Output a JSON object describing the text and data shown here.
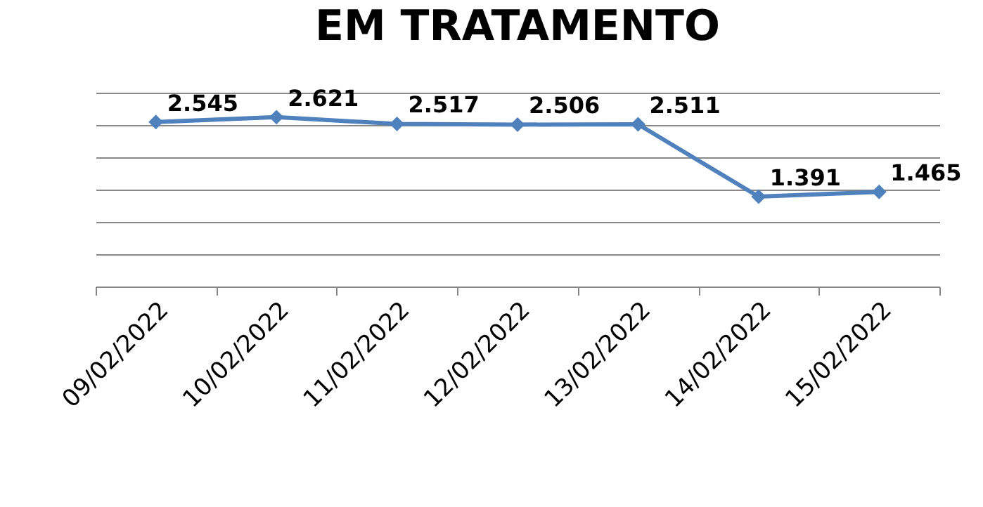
{
  "chart_data": {
    "type": "line",
    "title": "EM TRATAMENTO",
    "categories": [
      "09/02/2022",
      "10/02/2022",
      "11/02/2022",
      "12/02/2022",
      "13/02/2022",
      "14/02/2022",
      "15/02/2022"
    ],
    "series": [
      {
        "color": "#4f81bd",
        "values": [
          2545,
          2621,
          2517,
          2506,
          2511,
          1391,
          1465
        ],
        "value_labels": [
          "2.545",
          "2.621",
          "2.517",
          "2.506",
          "2.511",
          "1.391",
          "1.465"
        ]
      }
    ],
    "ylim": [
      0,
      3000
    ],
    "yticks": [
      0,
      500,
      1000,
      1500,
      2000,
      2500,
      3000
    ],
    "tick_labels": "x",
    "grid": "y",
    "marker": "diamond",
    "line_style": "solid"
  }
}
